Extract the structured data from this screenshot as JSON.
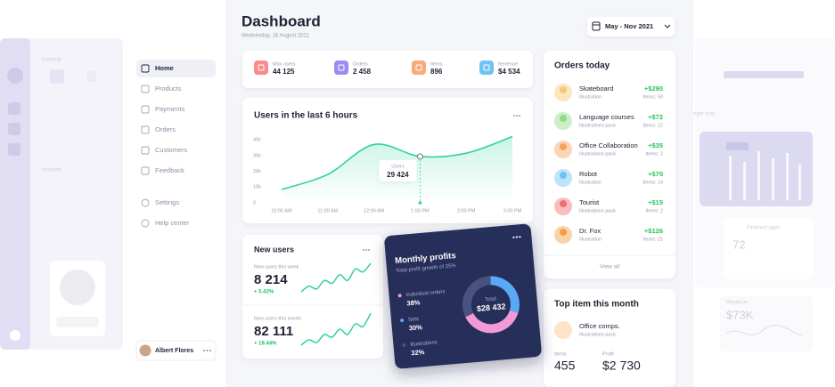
{
  "header": {
    "title": "Dashboard",
    "date": "Wednesday, 18 August 2021",
    "range": "May - Nov 2021"
  },
  "sidebar": {
    "menu": [
      "Home",
      "Products",
      "Payments",
      "Orders",
      "Customers",
      "Feedback"
    ],
    "bottom_menu": [
      "Settings",
      "Help center"
    ],
    "user": "Albert Flores"
  },
  "stats": [
    {
      "label": "Max users",
      "value": "44 125",
      "color": "#f98b8b"
    },
    {
      "label": "Orders",
      "value": "2 458",
      "color": "#9b8cf0"
    },
    {
      "label": "Items",
      "value": "896",
      "color": "#f9a97a"
    },
    {
      "label": "Revenue",
      "value": "$4 534",
      "color": "#6ec3f5"
    }
  ],
  "chart_data": [
    {
      "type": "line",
      "title": "Users in the last 6 hours",
      "categories": [
        "10:00 AM",
        "11:00 AM",
        "12:00 AM",
        "1:00 PM",
        "2:00 PM",
        "3:00 PM"
      ],
      "series": [
        {
          "name": "Users",
          "color": "#2fd29a",
          "values": [
            8500,
            18000,
            37000,
            29424,
            31500,
            42000
          ],
          "value_labels": [
            null,
            null,
            null,
            "29 424",
            null,
            null
          ]
        }
      ],
      "ylim": [
        0,
        44000
      ],
      "yticks": [
        0,
        {
          "value": 10000,
          "label": "10k"
        },
        {
          "value": 20000,
          "label": "20k"
        },
        {
          "value": 30000,
          "label": "30k"
        },
        {
          "value": 40000,
          "label": "40k"
        }
      ]
    },
    {
      "type": "sparkline",
      "color": "#2fd29a",
      "values": [
        2,
        4,
        3,
        6,
        5,
        8,
        6,
        10,
        9,
        12
      ]
    },
    {
      "type": "sparkline",
      "color": "#2fd29a",
      "values": [
        1,
        3,
        2,
        5,
        4,
        7,
        5,
        9,
        8,
        13
      ]
    },
    {
      "type": "pie",
      "title": "Monthly profits",
      "subtitle": "Total profit growth of 25%",
      "categories": [
        "Individual orders",
        "Sets",
        "Illustrations"
      ],
      "values": [
        38,
        30,
        32
      ],
      "value_labels": [
        "38%",
        "30%",
        "32%"
      ],
      "colors": [
        "#f29ad8",
        "#5aa9f7",
        "#4a5280"
      ],
      "center_label": "Total",
      "center_value": "$28 432"
    }
  ],
  "new_users": {
    "title": "New users",
    "week": {
      "label": "New users this week",
      "value": "8 214",
      "change": "+ 5.42%"
    },
    "month": {
      "label": "New users this month",
      "value": "82 111",
      "change": "+ 19.44%"
    }
  },
  "orders_today": {
    "title": "Orders today",
    "rows": [
      {
        "name": "Skateboard",
        "sub": "Illustration",
        "amount": "+$290",
        "items": "Items: 50",
        "color": "#f7c873"
      },
      {
        "name": "Language courses",
        "sub": "Illustrations pack",
        "amount": "+$72",
        "items": "Items: 12",
        "color": "#8fdc8a"
      },
      {
        "name": "Office Collaboration",
        "sub": "Illustrations pack",
        "amount": "+$35",
        "items": "Items: 2",
        "color": "#f5a25d"
      },
      {
        "name": "Robot",
        "sub": "Illustration",
        "amount": "+$70",
        "items": "Items: 14",
        "color": "#6ec3f5"
      },
      {
        "name": "Tourist",
        "sub": "Illustrations pack",
        "amount": "+$15",
        "items": "Items: 2",
        "color": "#ef6f6f"
      },
      {
        "name": "Dr. Fox",
        "sub": "Illustration",
        "amount": "+$126",
        "items": "Items: 21",
        "color": "#f59e42"
      }
    ],
    "view_all": "View all"
  },
  "top_item": {
    "title": "Top item this month",
    "name": "Office comps.",
    "sub": "Illustrations pack",
    "items_label": "Items",
    "items": "455",
    "profit_label": "Profit",
    "profit": "$2 730"
  },
  "background": {
    "general": "General",
    "account": "Account",
    "right_now": "right now",
    "finished_apps": "Finished apps",
    "apps": "72",
    "revenue_label": "Revenue",
    "revenue": "$73K"
  }
}
